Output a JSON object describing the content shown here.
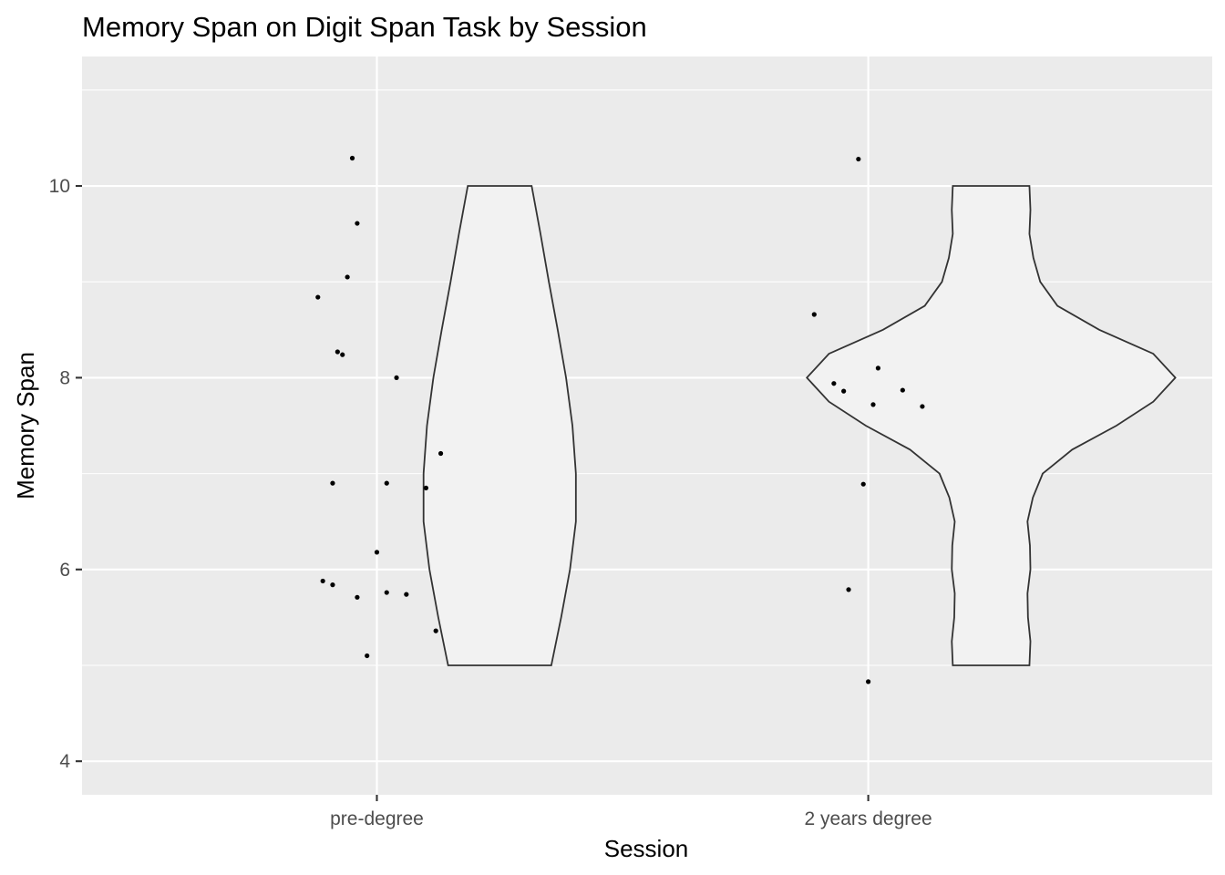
{
  "chart_data": {
    "type": "raincloud",
    "title": "Memory Span on Digit Span Task by Session",
    "xlabel": "Session",
    "ylabel": "Memory Span",
    "categories": [
      "pre-degree",
      "2 years degree"
    ],
    "ylim": [
      3.65,
      11.35
    ],
    "yticks": [
      4,
      6,
      8,
      10
    ],
    "ytick_labels": [
      "4",
      "6",
      "8",
      "10"
    ],
    "grid": true,
    "legend": "none",
    "colors": {
      "panel": "#ebebeb",
      "grid": "#ffffff",
      "violin_fill": "#f2f2f2",
      "violin_stroke": "#333333",
      "point": "#000000"
    },
    "series": [
      {
        "category": "pre-degree",
        "jitter": [
          {
            "dx": -0.05,
            "y": 10.29
          },
          {
            "dx": -0.04,
            "y": 9.61
          },
          {
            "dx": -0.06,
            "y": 9.05
          },
          {
            "dx": -0.12,
            "y": 8.84
          },
          {
            "dx": -0.08,
            "y": 8.27
          },
          {
            "dx": -0.07,
            "y": 8.24
          },
          {
            "dx": 0.04,
            "y": 8.0
          },
          {
            "dx": 0.13,
            "y": 7.21
          },
          {
            "dx": -0.09,
            "y": 6.9
          },
          {
            "dx": 0.02,
            "y": 6.9
          },
          {
            "dx": 0.1,
            "y": 6.85
          },
          {
            "dx": 0.0,
            "y": 6.18
          },
          {
            "dx": -0.11,
            "y": 5.88
          },
          {
            "dx": -0.09,
            "y": 5.84
          },
          {
            "dx": 0.02,
            "y": 5.76
          },
          {
            "dx": 0.06,
            "y": 5.74
          },
          {
            "dx": -0.04,
            "y": 5.71
          },
          {
            "dx": 0.12,
            "y": 5.36
          },
          {
            "dx": -0.02,
            "y": 5.1
          }
        ],
        "violin": {
          "center_offset": 0.25,
          "profile": [
            {
              "y": 5.0,
              "w": 0.105
            },
            {
              "y": 5.5,
              "w": 0.125
            },
            {
              "y": 6.0,
              "w": 0.143
            },
            {
              "y": 6.5,
              "w": 0.155
            },
            {
              "y": 7.0,
              "w": 0.155
            },
            {
              "y": 7.5,
              "w": 0.148
            },
            {
              "y": 8.0,
              "w": 0.135
            },
            {
              "y": 8.5,
              "w": 0.118
            },
            {
              "y": 9.0,
              "w": 0.1
            },
            {
              "y": 9.5,
              "w": 0.083
            },
            {
              "y": 10.0,
              "w": 0.065
            }
          ]
        }
      },
      {
        "category": "2 years degree",
        "jitter": [
          {
            "dx": -0.02,
            "y": 10.28
          },
          {
            "dx": -0.11,
            "y": 8.66
          },
          {
            "dx": 0.02,
            "y": 8.1
          },
          {
            "dx": -0.07,
            "y": 7.94
          },
          {
            "dx": -0.05,
            "y": 7.86
          },
          {
            "dx": 0.07,
            "y": 7.87
          },
          {
            "dx": 0.01,
            "y": 7.72
          },
          {
            "dx": 0.11,
            "y": 7.7
          },
          {
            "dx": -0.01,
            "y": 6.89
          },
          {
            "dx": -0.04,
            "y": 5.79
          },
          {
            "dx": 0.0,
            "y": 4.83
          }
        ],
        "violin": {
          "center_offset": 0.25,
          "profile": [
            {
              "y": 5.0,
              "w": 0.078
            },
            {
              "y": 5.25,
              "w": 0.08
            },
            {
              "y": 5.5,
              "w": 0.075
            },
            {
              "y": 5.75,
              "w": 0.074
            },
            {
              "y": 6.0,
              "w": 0.08
            },
            {
              "y": 6.25,
              "w": 0.079
            },
            {
              "y": 6.5,
              "w": 0.074
            },
            {
              "y": 6.75,
              "w": 0.085
            },
            {
              "y": 7.0,
              "w": 0.105
            },
            {
              "y": 7.25,
              "w": 0.165
            },
            {
              "y": 7.5,
              "w": 0.255
            },
            {
              "y": 7.75,
              "w": 0.33
            },
            {
              "y": 8.0,
              "w": 0.375
            },
            {
              "y": 8.25,
              "w": 0.33
            },
            {
              "y": 8.5,
              "w": 0.22
            },
            {
              "y": 8.75,
              "w": 0.135
            },
            {
              "y": 9.0,
              "w": 0.1
            },
            {
              "y": 9.25,
              "w": 0.086
            },
            {
              "y": 9.5,
              "w": 0.078
            },
            {
              "y": 9.75,
              "w": 0.08
            },
            {
              "y": 10.0,
              "w": 0.078
            }
          ]
        }
      }
    ]
  }
}
